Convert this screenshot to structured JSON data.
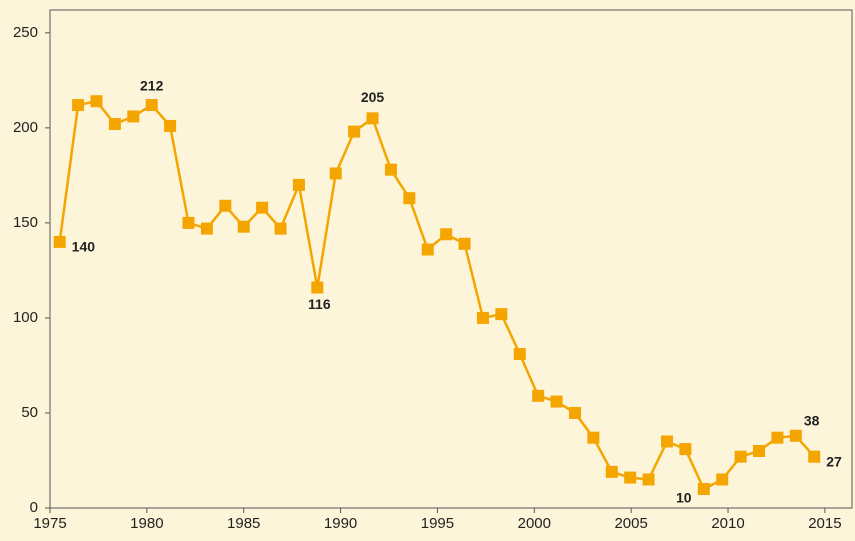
{
  "chart_data": {
    "type": "line",
    "x": [
      1975.5,
      1976.45,
      1977.4,
      1978.35,
      1979.3,
      1980.25,
      1981.2,
      1982.15,
      1983.1,
      1984.05,
      1985.0,
      1985.95,
      1986.9,
      1987.85,
      1988.8,
      1989.75,
      1990.7,
      1991.65,
      1992.6,
      1993.55,
      1994.5,
      1995.45,
      1996.4,
      1997.35,
      1998.3,
      1999.25,
      2000.2,
      2001.15,
      2002.1,
      2003.05,
      2004.0,
      2004.95,
      2005.9,
      2006.85,
      2007.8,
      2008.75,
      2009.7,
      2010.65,
      2011.6,
      2012.55,
      2013.5,
      2014.45
    ],
    "series": [
      {
        "color": "#f5a500",
        "values": [
          140,
          212,
          214,
          202,
          206,
          212,
          201,
          150,
          147,
          159,
          148,
          158,
          147,
          170,
          116,
          176,
          198,
          205,
          178,
          163,
          136,
          144,
          139,
          100,
          102,
          81,
          59,
          56,
          50,
          37,
          19,
          16,
          15,
          35,
          31,
          10,
          15,
          27,
          30,
          37,
          38,
          27
        ],
        "value_labels": [
          "140",
          null,
          null,
          null,
          null,
          "212",
          null,
          null,
          null,
          null,
          null,
          null,
          null,
          null,
          "116",
          null,
          null,
          "205",
          null,
          null,
          null,
          null,
          null,
          null,
          null,
          null,
          null,
          null,
          null,
          null,
          null,
          null,
          null,
          null,
          null,
          "10",
          null,
          null,
          null,
          null,
          "38",
          "27"
        ]
      }
    ],
    "xlim": [
      1975,
      2016.4
    ],
    "xticks": [
      1975,
      1980,
      1985,
      1990,
      1995,
      2000,
      2005,
      2010,
      2015
    ],
    "ylim": [
      0,
      262
    ],
    "yticks": [
      0,
      50,
      100,
      150,
      200,
      250
    ]
  }
}
